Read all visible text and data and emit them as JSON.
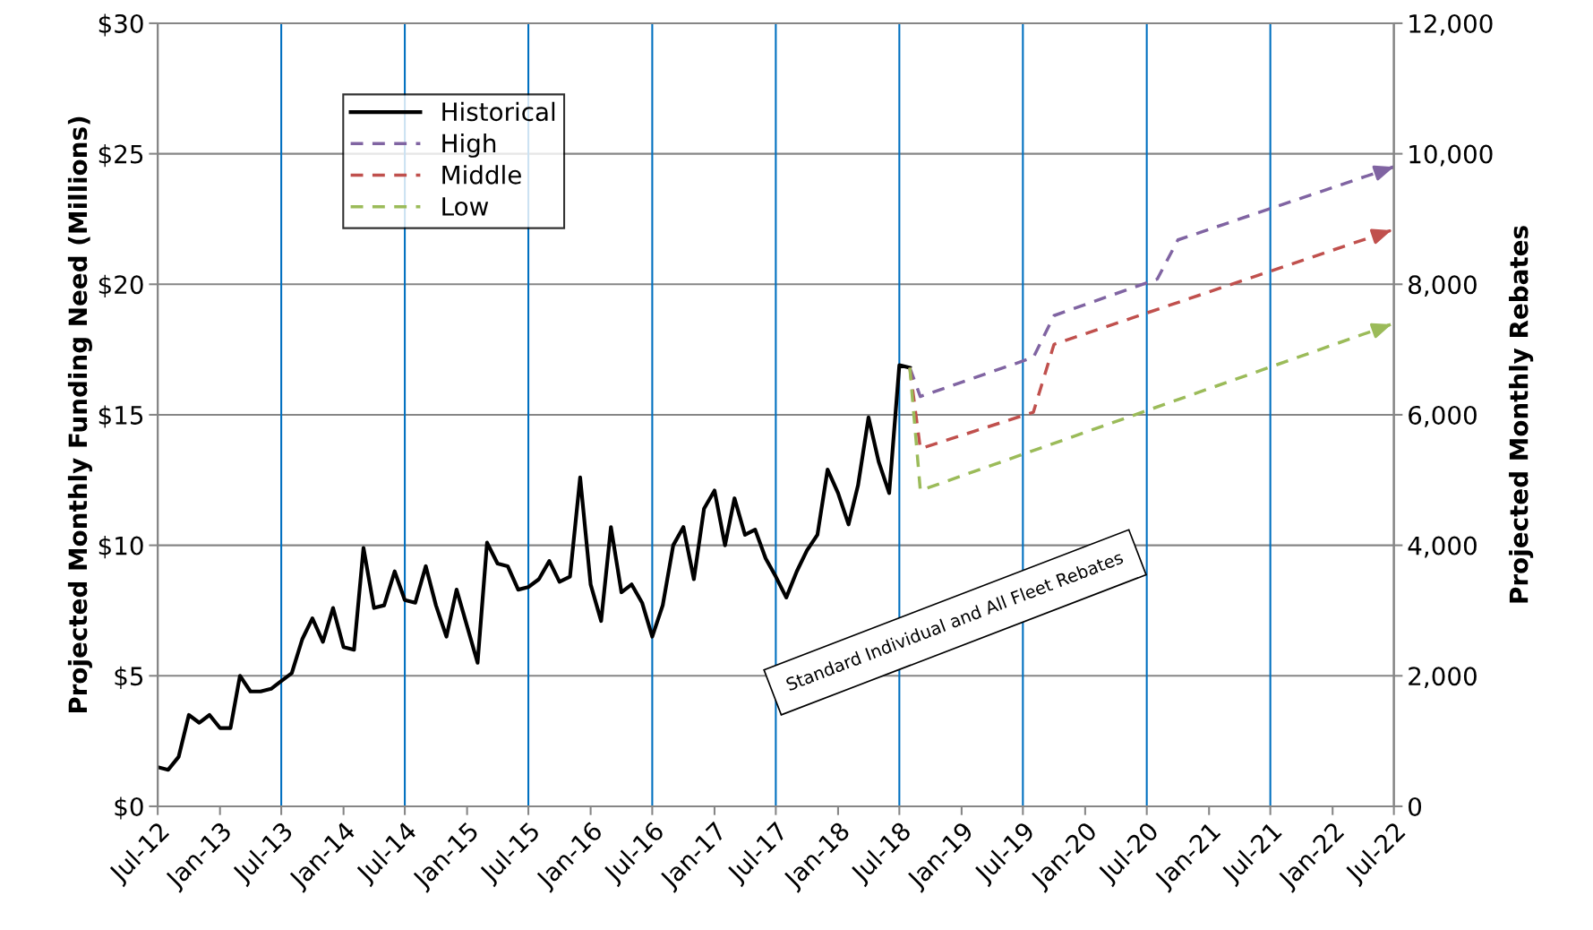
{
  "chart_data": {
    "type": "line",
    "ylabel": "Projected Monthly Funding Need (Millions)",
    "y2label": "Projected Monthly Rebates",
    "xlim": [
      "2012-07",
      "2022-07"
    ],
    "xticks": [
      {
        "value": "2012-07",
        "label": "Jul-12"
      },
      {
        "value": "2013-01",
        "label": "Jan-13"
      },
      {
        "value": "2013-07",
        "label": "Jul-13"
      },
      {
        "value": "2014-01",
        "label": "Jan-14"
      },
      {
        "value": "2014-07",
        "label": "Jul-14"
      },
      {
        "value": "2015-01",
        "label": "Jan-15"
      },
      {
        "value": "2015-07",
        "label": "Jul-15"
      },
      {
        "value": "2016-01",
        "label": "Jan-16"
      },
      {
        "value": "2016-07",
        "label": "Jul-16"
      },
      {
        "value": "2017-01",
        "label": "Jan-17"
      },
      {
        "value": "2017-07",
        "label": "Jul-17"
      },
      {
        "value": "2018-01",
        "label": "Jan-18"
      },
      {
        "value": "2018-07",
        "label": "Jul-18"
      },
      {
        "value": "2019-01",
        "label": "Jan-19"
      },
      {
        "value": "2019-07",
        "label": "Jul-19"
      },
      {
        "value": "2020-01",
        "label": "Jan-20"
      },
      {
        "value": "2020-07",
        "label": "Jul-20"
      },
      {
        "value": "2021-01",
        "label": "Jan-21"
      },
      {
        "value": "2021-07",
        "label": "Jul-21"
      },
      {
        "value": "2022-01",
        "label": "Jan-22"
      },
      {
        "value": "2022-07",
        "label": "Jul-22"
      }
    ],
    "ylim": [
      0,
      30
    ],
    "yticks": [
      {
        "value": 0,
        "label": "$0"
      },
      {
        "value": 5,
        "label": "$5"
      },
      {
        "value": 10,
        "label": "$10"
      },
      {
        "value": 15,
        "label": "$15"
      },
      {
        "value": 20,
        "label": "$20"
      },
      {
        "value": 25,
        "label": "$25"
      },
      {
        "value": 30,
        "label": "$30"
      }
    ],
    "y2lim": [
      0,
      12000
    ],
    "y2ticks": [
      0,
      {
        "value": 2000,
        "label": "2,000"
      },
      {
        "value": 4000,
        "label": "4,000"
      },
      {
        "value": 6000,
        "label": "6,000"
      },
      {
        "value": 8000,
        "label": "8,000"
      },
      {
        "value": 10000,
        "label": "10,000"
      },
      {
        "value": 12000,
        "label": "12,000"
      }
    ],
    "grid": "y",
    "legend": "top left",
    "ref_lines": [
      {
        "axis": "x",
        "value": "2013-07",
        "color": "#0070c0"
      },
      {
        "axis": "x",
        "value": "2014-07",
        "color": "#0070c0"
      },
      {
        "axis": "x",
        "value": "2015-07",
        "color": "#0070c0"
      },
      {
        "axis": "x",
        "value": "2016-07",
        "color": "#0070c0"
      },
      {
        "axis": "x",
        "value": "2017-07",
        "color": "#0070c0"
      },
      {
        "axis": "x",
        "value": "2018-07",
        "color": "#0070c0"
      },
      {
        "axis": "x",
        "value": "2019-07",
        "color": "#0070c0"
      },
      {
        "axis": "x",
        "value": "2020-07",
        "color": "#0070c0"
      },
      {
        "axis": "x",
        "value": "2021-07",
        "color": "#0070c0"
      }
    ],
    "annotations": [
      "Standard Individual and All Fleet Rebates"
    ],
    "series": [
      {
        "name": "Historical",
        "color": "#000000",
        "line_style": "solid",
        "x": [
          "2012-07",
          "2012-08",
          "2012-09",
          "2012-10",
          "2012-11",
          "2012-12",
          "2013-01",
          "2013-02",
          "2013-03",
          "2013-04",
          "2013-05",
          "2013-06",
          "2013-07",
          "2013-08",
          "2013-09",
          "2013-10",
          "2013-11",
          "2013-12",
          "2014-01",
          "2014-02",
          "2014-03",
          "2014-04",
          "2014-05",
          "2014-06",
          "2014-07",
          "2014-08",
          "2014-09",
          "2014-10",
          "2014-11",
          "2014-12",
          "2015-01",
          "2015-02",
          "2015-03",
          "2015-04",
          "2015-05",
          "2015-06",
          "2015-07",
          "2015-08",
          "2015-09",
          "2015-10",
          "2015-11",
          "2015-12",
          "2016-01",
          "2016-02",
          "2016-03",
          "2016-04",
          "2016-05",
          "2016-06",
          "2016-07",
          "2016-08",
          "2016-09",
          "2016-10",
          "2016-11",
          "2016-12",
          "2017-01",
          "2017-02",
          "2017-03",
          "2017-04",
          "2017-05",
          "2017-06",
          "2017-07",
          "2017-08",
          "2017-09",
          "2017-10",
          "2017-11",
          "2017-12",
          "2018-01",
          "2018-02",
          "2018-03",
          "2018-04",
          "2018-05",
          "2018-06",
          "2018-07",
          "2018-08"
        ],
        "values": [
          1.5,
          1.4,
          1.9,
          3.5,
          3.2,
          3.5,
          3.0,
          3.0,
          5.0,
          4.4,
          4.4,
          4.5,
          4.8,
          5.1,
          6.4,
          7.2,
          6.3,
          7.6,
          6.1,
          6.0,
          9.9,
          7.6,
          7.7,
          9.0,
          7.9,
          7.8,
          9.2,
          7.7,
          6.5,
          8.3,
          6.9,
          5.5,
          10.1,
          9.3,
          9.2,
          8.3,
          8.4,
          8.7,
          9.4,
          8.6,
          8.8,
          12.6,
          8.5,
          7.1,
          10.7,
          8.2,
          8.5,
          7.8,
          6.5,
          7.7,
          10.0,
          10.7,
          8.7,
          11.4,
          12.1,
          10.0,
          11.8,
          10.4,
          10.6,
          9.5,
          8.8,
          8.0,
          9.0,
          9.8,
          10.4,
          12.9,
          12.0,
          10.8,
          12.3,
          14.9,
          13.2,
          12.0,
          16.9,
          16.8
        ]
      },
      {
        "name": "High",
        "color": "#8064a2",
        "line_style": "dashed",
        "x": [
          "2018-08",
          "2018-09",
          "2019-08",
          "2019-10",
          "2020-08",
          "2020-10",
          "2022-07"
        ],
        "values": [
          16.8,
          15.7,
          17.2,
          18.8,
          20.2,
          21.7,
          24.5
        ]
      },
      {
        "name": "Middle",
        "color": "#c0504d",
        "line_style": "dashed",
        "x": [
          "2018-08",
          "2018-09",
          "2019-08",
          "2019-10",
          "2022-07"
        ],
        "values": [
          16.8,
          13.7,
          15.1,
          17.7,
          22.1
        ]
      },
      {
        "name": "Low",
        "color": "#9bbb59",
        "line_style": "dashed",
        "x": [
          "2018-08",
          "2018-09",
          "2022-07"
        ],
        "values": [
          16.8,
          12.1,
          18.5
        ]
      }
    ]
  }
}
